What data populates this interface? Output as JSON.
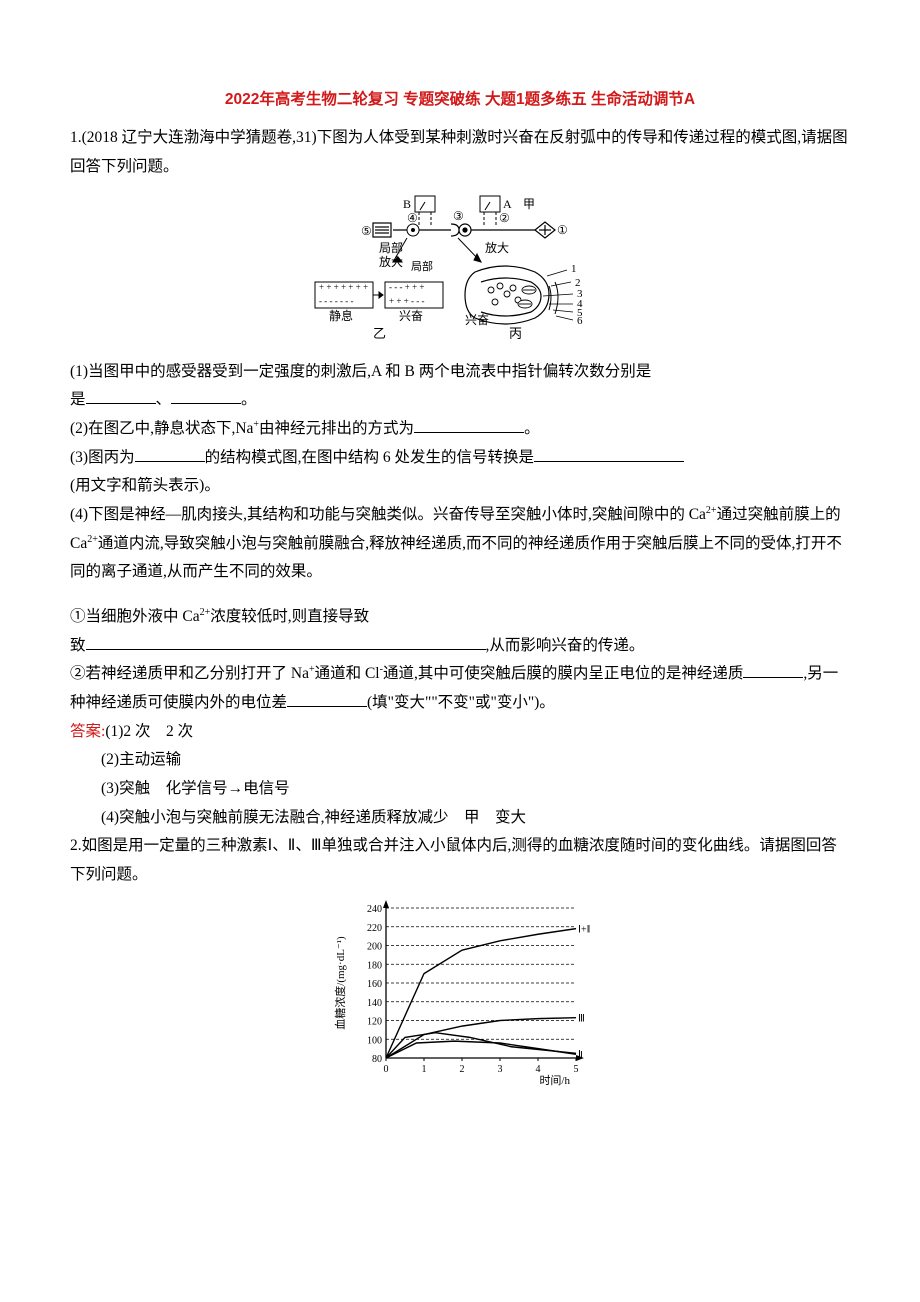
{
  "title": "2022年高考生物二轮复习 专题突破练 大题1题多练五 生命活动调节A",
  "q1": {
    "header": "1.(2018 辽宁大连渤海中学猜题卷,31)下图为人体受到某种刺激时兴奋在反射弧中的传导和传递过程的模式图,请据图回答下列问题。",
    "diagram": {
      "labels": {
        "B": "B",
        "A": "A",
        "jia": "甲",
        "c5": "⑤",
        "c4": "④",
        "c3": "③",
        "c1": "①",
        "c2": "②",
        "jubu": "局部",
        "fangda": "放大",
        "jingxi": "静息",
        "xingfen1": "兴奋",
        "xingfen2": "兴奋",
        "yi": "乙",
        "bing": "丙",
        "n1": "1",
        "n2": "2",
        "n3": "3",
        "n4": "4",
        "n5": "5",
        "n6": "6"
      },
      "colors": {
        "stroke": "#000000",
        "fill": "#ffffff"
      }
    },
    "p1": "(1)当图甲中的感受器受到一定强度的刺激后,A 和 B 两个电流表中指针偏转次数分别是",
    "p1b": "、",
    "p1c": "。",
    "p2a": "(2)在图乙中,静息状态下,Na",
    "p2b": "由神经元排出的方式为",
    "p2c": "。",
    "p3a": "(3)图丙为",
    "p3b": "的结构模式图,在图中结构 6 处发生的信号转换是",
    "p3c": "(用文字和箭头表示)。",
    "p4": "(4)下图是神经—肌肉接头,其结构和功能与突触类似。兴奋传导至突触小体时,突触间隙中的 Ca",
    "p4b": "通过突触前膜上的 Ca",
    "p4c": "通道内流,导致突触小泡与突触前膜融合,释放神经递质,而不同的神经递质作用于突触后膜上不同的受体,打开不同的离子通道,从而产生不同的效果。",
    "p5a": "①当细胞外液中 Ca",
    "p5b": "浓度较低时,则直接导致",
    "p5c": ",从而影响兴奋的传递。",
    "p6a": "②若神经递质甲和乙分别打开了 Na",
    "p6b": "通道和 Cl",
    "p6c": "通道,其中可使突触后膜的膜内呈正电位的是神经递质",
    "p6d": ",另一种神经递质可使膜内外的电位差",
    "p6e": "(填\"变大\"\"不变\"或\"变小\")。",
    "ans_label": "答案:",
    "ans1": "(1)2 次　2 次",
    "ans2": "(2)主动运输",
    "ans3": "(3)突触　化学信号→电信号",
    "ans4": "(4)突触小泡与突触前膜无法融合,神经递质释放减少　甲　变大"
  },
  "q2": {
    "header": "2.如图是用一定量的三种激素Ⅰ、Ⅱ、Ⅲ单独或合并注入小鼠体内后,测得的血糖浓度随时间的变化曲线。请据图回答下列问题。",
    "chart": {
      "type": "line",
      "ylabel": "血糖浓度/(mg·dL⁻¹)",
      "xlabel": "时间/h",
      "ylim": [
        80,
        240
      ],
      "ytick_step": 20,
      "xlim": [
        0,
        5
      ],
      "xtick_step": 1,
      "background_color": "#ffffff",
      "axis_color": "#000000",
      "grid_style": "dashed",
      "grid_color": "#000000",
      "series": {
        "all": {
          "label": "Ⅰ+Ⅱ+Ⅲ",
          "x": [
            0,
            1,
            2,
            3,
            4,
            5
          ],
          "y": [
            80,
            170,
            195,
            205,
            212,
            218
          ],
          "color": "#000000",
          "width": 1.4
        },
        "III": {
          "label": "Ⅲ",
          "x": [
            0,
            1,
            2,
            3,
            4,
            5
          ],
          "y": [
            80,
            105,
            114,
            120,
            122,
            123
          ],
          "color": "#000000",
          "width": 1.4
        },
        "I": {
          "label": "Ⅰ",
          "x": [
            0,
            0.5,
            1.3,
            2.2,
            3.3,
            5
          ],
          "y": [
            80,
            102,
            107,
            102,
            92,
            85
          ],
          "color": "#000000",
          "width": 1.4
        },
        "II": {
          "label": "Ⅱ",
          "x": [
            0,
            0.8,
            1.8,
            3,
            4,
            5
          ],
          "y": [
            80,
            96,
            98,
            96,
            90,
            84
          ],
          "color": "#000000",
          "width": 1.4
        }
      }
    }
  }
}
